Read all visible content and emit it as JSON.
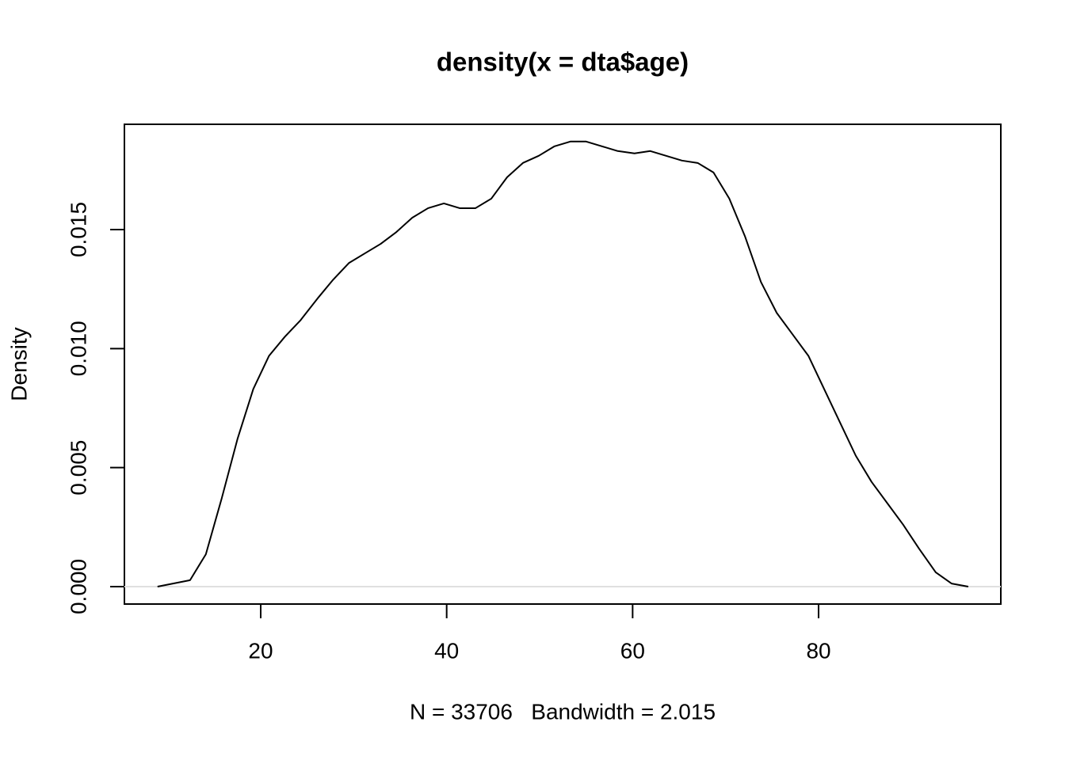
{
  "chart_data": {
    "type": "line",
    "title": "density(x = dta$age)",
    "xlabel": "N = 33706   Bandwidth = 2.015",
    "ylabel": "Density",
    "x": [
      8.9,
      12.4,
      14.1,
      15.8,
      17.5,
      19.2,
      20.9,
      22.6,
      24.3,
      26.1,
      27.8,
      29.5,
      31.2,
      32.9,
      34.6,
      36.3,
      38.0,
      39.7,
      41.4,
      43.1,
      44.8,
      46.5,
      48.2,
      49.9,
      51.6,
      53.3,
      55.0,
      56.7,
      58.4,
      60.2,
      61.9,
      63.6,
      65.3,
      67.0,
      68.7,
      70.4,
      72.1,
      73.8,
      75.5,
      77.2,
      78.9,
      80.6,
      82.3,
      84.0,
      85.7,
      87.4,
      89.1,
      90.8,
      92.6,
      94.3,
      96.1
    ],
    "series": [
      {
        "name": "density",
        "color": "#000000",
        "values": [
          0,
          0.00027,
          0.00136,
          0.0037,
          0.0062,
          0.0083,
          0.0097,
          0.0105,
          0.0112,
          0.0121,
          0.0129,
          0.0136,
          0.014,
          0.0144,
          0.0149,
          0.0155,
          0.0159,
          0.0161,
          0.0159,
          0.0159,
          0.0163,
          0.0172,
          0.0178,
          0.0181,
          0.0185,
          0.0187,
          0.0187,
          0.0185,
          0.0183,
          0.0182,
          0.0183,
          0.0181,
          0.0179,
          0.0178,
          0.0174,
          0.0163,
          0.0147,
          0.0128,
          0.0115,
          0.0106,
          0.0097,
          0.0083,
          0.0069,
          0.0055,
          0.0044,
          0.0035,
          0.0026,
          0.0016,
          0.0006,
          0.00013,
          0
        ]
      }
    ],
    "xlim": [
      5.34,
      99.6
    ],
    "ylim": [
      -0.000732,
      0.019424
    ],
    "xticks": [
      20,
      40,
      60,
      80
    ],
    "yticks": [
      {
        "value": 0,
        "label": "0.000"
      },
      {
        "value": 0.005,
        "label": "0.005"
      },
      {
        "value": 0.01,
        "label": "0.010"
      },
      {
        "value": 0.015,
        "label": "0.015"
      }
    ],
    "zero_line_color": "#e0e0e0"
  }
}
